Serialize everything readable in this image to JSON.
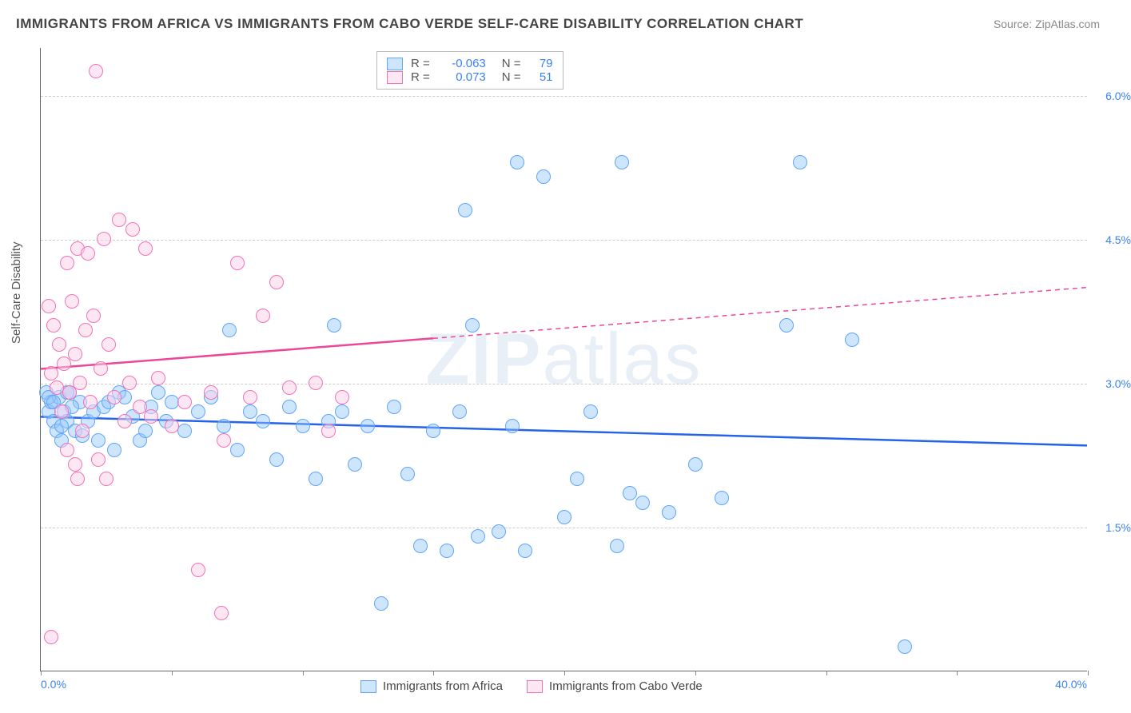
{
  "title": "IMMIGRANTS FROM AFRICA VS IMMIGRANTS FROM CABO VERDE SELF-CARE DISABILITY CORRELATION CHART",
  "source_label": "Source: ZipAtlas.com",
  "ylabel": "Self-Care Disability",
  "watermark": "ZIPatlas",
  "xaxis": {
    "min": 0.0,
    "max": 40.0,
    "label_left": "0.0%",
    "label_right": "40.0%",
    "label_color": "#3b82f6",
    "tick_positions_pct": [
      0,
      12.5,
      25,
      37.5,
      50,
      62.5,
      75,
      87.5,
      100
    ]
  },
  "yaxis": {
    "min": 0.0,
    "max": 6.5,
    "ticks": [
      1.5,
      3.0,
      4.5,
      6.0
    ],
    "tick_labels": [
      "1.5%",
      "3.0%",
      "4.5%",
      "6.0%"
    ],
    "tick_color": "#3b82f6",
    "grid_color": "#cccccc"
  },
  "series": [
    {
      "name": "Immigrants from Africa",
      "fill": "rgba(147,197,253,0.45)",
      "stroke": "#60a5fa",
      "trend_color": "#2563eb",
      "trend": {
        "x1": 0,
        "y1": 2.65,
        "x2": 40,
        "y2": 2.35,
        "dash_after_x": null
      },
      "marker_r": 9,
      "R": "-0.063",
      "N": "79",
      "points": [
        [
          0.2,
          2.9
        ],
        [
          0.3,
          2.7
        ],
        [
          0.4,
          2.8
        ],
        [
          0.5,
          2.6
        ],
        [
          0.6,
          2.5
        ],
        [
          0.7,
          2.85
        ],
        [
          0.8,
          2.4
        ],
        [
          0.9,
          2.7
        ],
        [
          1.0,
          2.6
        ],
        [
          1.1,
          2.9
        ],
        [
          1.3,
          2.5
        ],
        [
          1.5,
          2.8
        ],
        [
          1.6,
          2.45
        ],
        [
          1.8,
          2.6
        ],
        [
          2.0,
          2.7
        ],
        [
          2.2,
          2.4
        ],
        [
          2.4,
          2.75
        ],
        [
          2.6,
          2.8
        ],
        [
          2.8,
          2.3
        ],
        [
          3.0,
          2.9
        ],
        [
          3.2,
          2.85
        ],
        [
          3.5,
          2.65
        ],
        [
          3.8,
          2.4
        ],
        [
          4.0,
          2.5
        ],
        [
          4.2,
          2.75
        ],
        [
          4.5,
          2.9
        ],
        [
          4.8,
          2.6
        ],
        [
          5.0,
          2.8
        ],
        [
          5.5,
          2.5
        ],
        [
          6.0,
          2.7
        ],
        [
          6.5,
          2.85
        ],
        [
          7.0,
          2.55
        ],
        [
          7.2,
          3.55
        ],
        [
          7.5,
          2.3
        ],
        [
          8.0,
          2.7
        ],
        [
          8.5,
          2.6
        ],
        [
          9.0,
          2.2
        ],
        [
          9.5,
          2.75
        ],
        [
          10.0,
          2.55
        ],
        [
          10.5,
          2.0
        ],
        [
          11.0,
          2.6
        ],
        [
          11.2,
          3.6
        ],
        [
          11.5,
          2.7
        ],
        [
          12.0,
          2.15
        ],
        [
          12.5,
          2.55
        ],
        [
          13.0,
          0.7
        ],
        [
          13.5,
          2.75
        ],
        [
          14.0,
          2.05
        ],
        [
          14.5,
          1.3
        ],
        [
          15.0,
          2.5
        ],
        [
          15.5,
          1.25
        ],
        [
          16.0,
          2.7
        ],
        [
          16.2,
          4.8
        ],
        [
          16.5,
          3.6
        ],
        [
          16.7,
          1.4
        ],
        [
          17.5,
          1.45
        ],
        [
          18.0,
          2.55
        ],
        [
          18.2,
          5.3
        ],
        [
          18.5,
          1.25
        ],
        [
          19.2,
          5.15
        ],
        [
          20.0,
          1.6
        ],
        [
          20.5,
          2.0
        ],
        [
          21.0,
          2.7
        ],
        [
          22.0,
          1.3
        ],
        [
          22.2,
          5.3
        ],
        [
          22.5,
          1.85
        ],
        [
          23.0,
          1.75
        ],
        [
          24.0,
          1.65
        ],
        [
          25.0,
          2.15
        ],
        [
          26.0,
          1.8
        ],
        [
          28.5,
          3.6
        ],
        [
          29.0,
          5.3
        ],
        [
          31.0,
          3.45
        ],
        [
          33.0,
          0.25
        ],
        [
          0.3,
          2.85
        ],
        [
          0.5,
          2.8
        ],
        [
          0.8,
          2.55
        ],
        [
          1.0,
          2.9
        ],
        [
          1.2,
          2.75
        ]
      ]
    },
    {
      "name": "Immigrants from Cabo Verde",
      "fill": "rgba(251,207,232,0.5)",
      "stroke": "#f472b6",
      "trend_color": "#ec4899",
      "trend": {
        "x1": 0,
        "y1": 3.15,
        "x2": 40,
        "y2": 4.0,
        "dash_after_x": 15
      },
      "marker_r": 9,
      "R": "0.073",
      "N": "51",
      "points": [
        [
          0.3,
          3.8
        ],
        [
          0.4,
          3.1
        ],
        [
          0.5,
          3.6
        ],
        [
          0.6,
          2.95
        ],
        [
          0.7,
          3.4
        ],
        [
          0.8,
          2.7
        ],
        [
          0.9,
          3.2
        ],
        [
          1.0,
          4.25
        ],
        [
          1.1,
          2.9
        ],
        [
          1.2,
          3.85
        ],
        [
          1.3,
          3.3
        ],
        [
          1.4,
          4.4
        ],
        [
          1.5,
          3.0
        ],
        [
          1.6,
          2.5
        ],
        [
          1.7,
          3.55
        ],
        [
          1.8,
          4.35
        ],
        [
          1.9,
          2.8
        ],
        [
          2.0,
          3.7
        ],
        [
          2.1,
          6.25
        ],
        [
          2.2,
          2.2
        ],
        [
          2.3,
          3.15
        ],
        [
          2.4,
          4.5
        ],
        [
          2.5,
          2.0
        ],
        [
          2.6,
          3.4
        ],
        [
          2.8,
          2.85
        ],
        [
          3.0,
          4.7
        ],
        [
          3.2,
          2.6
        ],
        [
          3.4,
          3.0
        ],
        [
          3.5,
          4.6
        ],
        [
          3.8,
          2.75
        ],
        [
          4.0,
          4.4
        ],
        [
          4.2,
          2.65
        ],
        [
          4.5,
          3.05
        ],
        [
          5.0,
          2.55
        ],
        [
          5.5,
          2.8
        ],
        [
          6.0,
          1.05
        ],
        [
          6.5,
          2.9
        ],
        [
          6.9,
          0.6
        ],
        [
          7.0,
          2.4
        ],
        [
          7.5,
          4.25
        ],
        [
          8.0,
          2.85
        ],
        [
          8.5,
          3.7
        ],
        [
          9.0,
          4.05
        ],
        [
          9.5,
          2.95
        ],
        [
          10.5,
          3.0
        ],
        [
          11.0,
          2.5
        ],
        [
          11.5,
          2.85
        ],
        [
          1.0,
          2.3
        ],
        [
          1.3,
          2.15
        ],
        [
          0.4,
          0.35
        ],
        [
          1.4,
          2.0
        ]
      ]
    }
  ],
  "legend_top": {
    "R_label": "R =",
    "N_label": "N =",
    "text_color": "#555",
    "value_color": "#3b82f6"
  },
  "legend_bottom": [
    {
      "label": "Immigrants from Africa",
      "fill": "rgba(147,197,253,0.45)",
      "stroke": "#60a5fa"
    },
    {
      "label": "Immigrants from Cabo Verde",
      "fill": "rgba(251,207,232,0.5)",
      "stroke": "#f472b6"
    }
  ]
}
